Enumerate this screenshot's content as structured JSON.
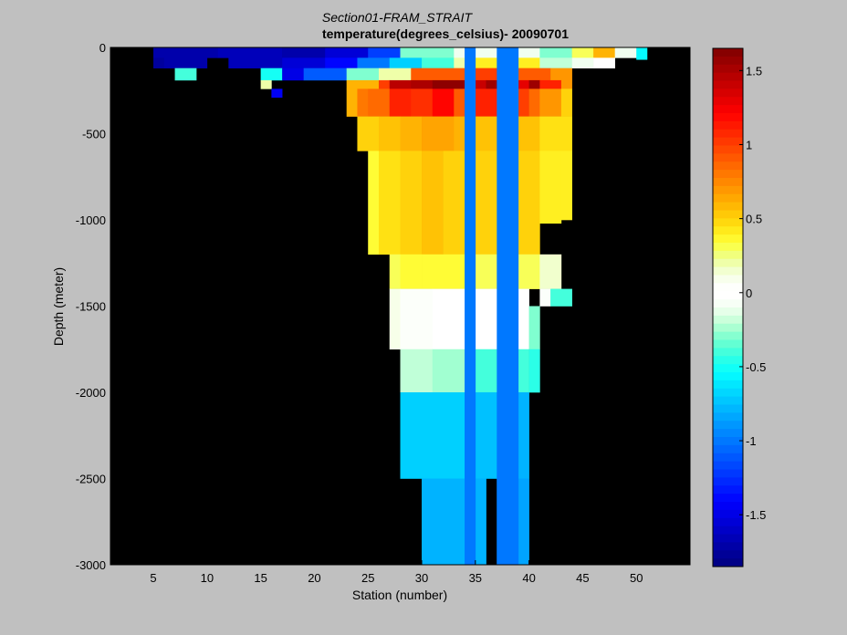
{
  "chart_data": {
    "type": "heatmap",
    "title_line1": "Section01-FRAM_STRAIT",
    "title_line2": "temperature(degrees_celsius)- 20090701",
    "xlabel": "Station (number)",
    "ylabel": "Depth (meter)",
    "xlim": [
      1,
      55
    ],
    "ylim": [
      -3000,
      0
    ],
    "x_ticks": [
      5,
      10,
      15,
      20,
      25,
      30,
      35,
      40,
      45,
      50
    ],
    "y_ticks": [
      0,
      -500,
      -1000,
      -1500,
      -2000,
      -2500,
      -3000
    ],
    "colorbar": {
      "range": [
        -1.85,
        1.65
      ],
      "ticks": [
        1.5,
        1,
        0.5,
        0,
        -0.5,
        -1,
        -1.5
      ]
    },
    "background_color": "#000000",
    "cells": [
      {
        "x": [
          5,
          11
        ],
        "depth": [
          0,
          60
        ],
        "value": -1.7
      },
      {
        "x": [
          11,
          17
        ],
        "depth": [
          0,
          60
        ],
        "value": -1.65
      },
      {
        "x": [
          17,
          21
        ],
        "depth": [
          0,
          60
        ],
        "value": -1.7
      },
      {
        "x": [
          21,
          25
        ],
        "depth": [
          0,
          60
        ],
        "value": -1.55
      },
      {
        "x": [
          25,
          28
        ],
        "depth": [
          0,
          60
        ],
        "value": -1.2
      },
      {
        "x": [
          28,
          33
        ],
        "depth": [
          0,
          60
        ],
        "value": -0.3
      },
      {
        "x": [
          33,
          41
        ],
        "depth": [
          0,
          60
        ],
        "value": -0.1
      },
      {
        "x": [
          41,
          44
        ],
        "depth": [
          0,
          60
        ],
        "value": -0.3
      },
      {
        "x": [
          44,
          46
        ],
        "depth": [
          0,
          60
        ],
        "value": 0.3
      },
      {
        "x": [
          46,
          48
        ],
        "depth": [
          0,
          60
        ],
        "value": 0.6
      },
      {
        "x": [
          48,
          50
        ],
        "depth": [
          0,
          60
        ],
        "value": -0.1
      },
      {
        "x": [
          50,
          51
        ],
        "depth": [
          0,
          60
        ],
        "value": -0.55
      },
      {
        "x": [
          5,
          6
        ],
        "depth": [
          60,
          120
        ],
        "value": -1.75
      },
      {
        "x": [
          6,
          10
        ],
        "depth": [
          60,
          120
        ],
        "value": -1.7
      },
      {
        "x": [
          12,
          17
        ],
        "depth": [
          60,
          120
        ],
        "value": -1.65
      },
      {
        "x": [
          17,
          21
        ],
        "depth": [
          60,
          120
        ],
        "value": -1.55
      },
      {
        "x": [
          21,
          24
        ],
        "depth": [
          60,
          120
        ],
        "value": -1.4
      },
      {
        "x": [
          24,
          27
        ],
        "depth": [
          60,
          120
        ],
        "value": -1.0
      },
      {
        "x": [
          27,
          30
        ],
        "depth": [
          60,
          120
        ],
        "value": -0.7
      },
      {
        "x": [
          30,
          33
        ],
        "depth": [
          60,
          120
        ],
        "value": -0.4
      },
      {
        "x": [
          33,
          35
        ],
        "depth": [
          60,
          120
        ],
        "value": 0.2
      },
      {
        "x": [
          35,
          41
        ],
        "depth": [
          60,
          120
        ],
        "value": 0.4
      },
      {
        "x": [
          41,
          44
        ],
        "depth": [
          60,
          120
        ],
        "value": -0.2
      },
      {
        "x": [
          44,
          46
        ],
        "depth": [
          60,
          120
        ],
        "value": -0.1
      },
      {
        "x": [
          46,
          48
        ],
        "depth": [
          60,
          120
        ],
        "value": 0.0
      },
      {
        "x": [
          50,
          51
        ],
        "depth": [
          60,
          70
        ],
        "value": -0.55
      },
      {
        "x": [
          7,
          9
        ],
        "depth": [
          120,
          190
        ],
        "value": -0.4
      },
      {
        "x": [
          15,
          17
        ],
        "depth": [
          120,
          190
        ],
        "value": -0.5
      },
      {
        "x": [
          17,
          19
        ],
        "depth": [
          120,
          190
        ],
        "value": -1.5
      },
      {
        "x": [
          19,
          23
        ],
        "depth": [
          120,
          190
        ],
        "value": -1.1
      },
      {
        "x": [
          23,
          26
        ],
        "depth": [
          120,
          190
        ],
        "value": -0.3
      },
      {
        "x": [
          26,
          29
        ],
        "depth": [
          120,
          190
        ],
        "value": 0.2
      },
      {
        "x": [
          29,
          34
        ],
        "depth": [
          120,
          190
        ],
        "value": 0.9
      },
      {
        "x": [
          34,
          38
        ],
        "depth": [
          120,
          190
        ],
        "value": 1.0
      },
      {
        "x": [
          38,
          42
        ],
        "depth": [
          120,
          190
        ],
        "value": 0.9
      },
      {
        "x": [
          42,
          44
        ],
        "depth": [
          120,
          190
        ],
        "value": 0.7
      },
      {
        "x": [
          15,
          16
        ],
        "depth": [
          190,
          240
        ],
        "value": 0.2
      },
      {
        "x": [
          23,
          26
        ],
        "depth": [
          190,
          240
        ],
        "value": 0.6
      },
      {
        "x": [
          26,
          27
        ],
        "depth": [
          190,
          240
        ],
        "value": 1.0
      },
      {
        "x": [
          27,
          29
        ],
        "depth": [
          190,
          240
        ],
        "value": 1.45
      },
      {
        "x": [
          29,
          31
        ],
        "depth": [
          190,
          240
        ],
        "value": 1.5
      },
      {
        "x": [
          31,
          34
        ],
        "depth": [
          190,
          240
        ],
        "value": 1.6
      },
      {
        "x": [
          34,
          36
        ],
        "depth": [
          190,
          240
        ],
        "value": 1.4
      },
      {
        "x": [
          36,
          39
        ],
        "depth": [
          190,
          240
        ],
        "value": 1.55
      },
      {
        "x": [
          39,
          40
        ],
        "depth": [
          190,
          240
        ],
        "value": 1.3
      },
      {
        "x": [
          40,
          41
        ],
        "depth": [
          190,
          240
        ],
        "value": 1.55
      },
      {
        "x": [
          41,
          43
        ],
        "depth": [
          190,
          240
        ],
        "value": 1.1
      },
      {
        "x": [
          43,
          44
        ],
        "depth": [
          190,
          240
        ],
        "value": 0.7
      },
      {
        "x": [
          16,
          17
        ],
        "depth": [
          240,
          290
        ],
        "value": -1.45
      },
      {
        "x": [
          23,
          24
        ],
        "depth": [
          240,
          400
        ],
        "value": 0.6
      },
      {
        "x": [
          24,
          25
        ],
        "depth": [
          240,
          400
        ],
        "value": 0.8
      },
      {
        "x": [
          25,
          27
        ],
        "depth": [
          240,
          400
        ],
        "value": 0.85
      },
      {
        "x": [
          27,
          29
        ],
        "depth": [
          240,
          400
        ],
        "value": 1.1
      },
      {
        "x": [
          29,
          31
        ],
        "depth": [
          240,
          400
        ],
        "value": 1.05
      },
      {
        "x": [
          31,
          33
        ],
        "depth": [
          240,
          400
        ],
        "value": 1.2
      },
      {
        "x": [
          33,
          34
        ],
        "depth": [
          240,
          400
        ],
        "value": 0.9
      },
      {
        "x": [
          34,
          37
        ],
        "depth": [
          240,
          400
        ],
        "value": 1.1
      },
      {
        "x": [
          37,
          40
        ],
        "depth": [
          240,
          400
        ],
        "value": 1.0
      },
      {
        "x": [
          40,
          41
        ],
        "depth": [
          240,
          400
        ],
        "value": 0.85
      },
      {
        "x": [
          41,
          43
        ],
        "depth": [
          240,
          400
        ],
        "value": 0.7
      },
      {
        "x": [
          43,
          44
        ],
        "depth": [
          240,
          400
        ],
        "value": 0.5
      },
      {
        "x": [
          24,
          26
        ],
        "depth": [
          400,
          600
        ],
        "value": 0.5
      },
      {
        "x": [
          26,
          28
        ],
        "depth": [
          400,
          600
        ],
        "value": 0.55
      },
      {
        "x": [
          28,
          30
        ],
        "depth": [
          400,
          600
        ],
        "value": 0.6
      },
      {
        "x": [
          30,
          33
        ],
        "depth": [
          400,
          600
        ],
        "value": 0.65
      },
      {
        "x": [
          33,
          34
        ],
        "depth": [
          400,
          600
        ],
        "value": 0.6
      },
      {
        "x": [
          34,
          41
        ],
        "depth": [
          400,
          600
        ],
        "value": 0.55
      },
      {
        "x": [
          41,
          44
        ],
        "depth": [
          400,
          600
        ],
        "value": 0.45
      },
      {
        "x": [
          25,
          26
        ],
        "depth": [
          600,
          1200
        ],
        "value": 0.35
      },
      {
        "x": [
          26,
          28
        ],
        "depth": [
          600,
          1200
        ],
        "value": 0.45
      },
      {
        "x": [
          28,
          30
        ],
        "depth": [
          600,
          1200
        ],
        "value": 0.5
      },
      {
        "x": [
          30,
          32
        ],
        "depth": [
          600,
          1200
        ],
        "value": 0.55
      },
      {
        "x": [
          32,
          34
        ],
        "depth": [
          600,
          1200
        ],
        "value": 0.5
      },
      {
        "x": [
          34,
          41
        ],
        "depth": [
          600,
          1200
        ],
        "value": 0.5
      },
      {
        "x": [
          41,
          43
        ],
        "depth": [
          600,
          1020
        ],
        "value": 0.4
      },
      {
        "x": [
          43,
          44
        ],
        "depth": [
          600,
          1000
        ],
        "value": 0.4
      },
      {
        "x": [
          27,
          28
        ],
        "depth": [
          1200,
          1400
        ],
        "value": 0.3
      },
      {
        "x": [
          28,
          30
        ],
        "depth": [
          1200,
          1400
        ],
        "value": 0.35
      },
      {
        "x": [
          30,
          34
        ],
        "depth": [
          1200,
          1400
        ],
        "value": 0.35
      },
      {
        "x": [
          34,
          41
        ],
        "depth": [
          1200,
          1400
        ],
        "value": 0.3
      },
      {
        "x": [
          41,
          43
        ],
        "depth": [
          1200,
          1400
        ],
        "value": 0.15
      },
      {
        "x": [
          41,
          42
        ],
        "depth": [
          1400,
          1500
        ],
        "value": -0.05
      },
      {
        "x": [
          42,
          44
        ],
        "depth": [
          1400,
          1500
        ],
        "value": -0.4
      },
      {
        "x": [
          27,
          28
        ],
        "depth": [
          1400,
          1750
        ],
        "value": 0.1
      },
      {
        "x": [
          28,
          31
        ],
        "depth": [
          1400,
          1750
        ],
        "value": 0.05
      },
      {
        "x": [
          31,
          34
        ],
        "depth": [
          1400,
          1750
        ],
        "value": 0.0
      },
      {
        "x": [
          34,
          40
        ],
        "depth": [
          1400,
          1750
        ],
        "value": 0.0
      },
      {
        "x": [
          40,
          41
        ],
        "depth": [
          1500,
          1750
        ],
        "value": -0.3
      },
      {
        "x": [
          28,
          31
        ],
        "depth": [
          1750,
          2000
        ],
        "value": -0.2
      },
      {
        "x": [
          31,
          34
        ],
        "depth": [
          1750,
          2000
        ],
        "value": -0.25
      },
      {
        "x": [
          34,
          40
        ],
        "depth": [
          1750,
          2000
        ],
        "value": -0.4
      },
      {
        "x": [
          40,
          41
        ],
        "depth": [
          1750,
          2000
        ],
        "value": -0.45
      },
      {
        "x": [
          28,
          34
        ],
        "depth": [
          2000,
          2500
        ],
        "value": -0.7
      },
      {
        "x": [
          34,
          37
        ],
        "depth": [
          2000,
          2500
        ],
        "value": -0.75
      },
      {
        "x": [
          37,
          40
        ],
        "depth": [
          2000,
          2500
        ],
        "value": -0.8
      },
      {
        "x": [
          30,
          36
        ],
        "depth": [
          2500,
          3000
        ],
        "value": -0.8
      },
      {
        "x": [
          37,
          40
        ],
        "depth": [
          2500,
          3000
        ],
        "value": -0.85
      },
      {
        "x": [
          34,
          35
        ],
        "depth": [
          0,
          3000
        ],
        "value": -1.0
      },
      {
        "x": [
          37,
          39
        ],
        "depth": [
          0,
          3000
        ],
        "value": -1.0
      }
    ]
  }
}
